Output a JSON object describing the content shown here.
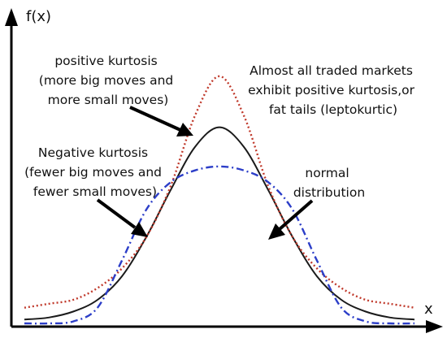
{
  "chart_data": {
    "type": "line",
    "title": "",
    "xlabel": "x",
    "ylabel": "f(x)",
    "grid": false,
    "legend": "none",
    "xlim": [
      -4,
      4
    ],
    "ylim": [
      0,
      0.7
    ],
    "series": [
      {
        "key": "normal",
        "style": "solid",
        "color": "#1a1a1a",
        "x": [
          -4,
          -3.5,
          -3,
          -2.5,
          -2,
          -1.5,
          -1,
          -0.5,
          0,
          0.5,
          1,
          1.5,
          2,
          2.5,
          3,
          3.5,
          4
        ],
        "y": [
          0.01,
          0.015,
          0.03,
          0.06,
          0.12,
          0.22,
          0.34,
          0.45,
          0.5,
          0.45,
          0.34,
          0.22,
          0.12,
          0.06,
          0.03,
          0.015,
          0.01
        ]
      },
      {
        "key": "leptokurtic",
        "style": "dotted",
        "color": "#c0392b",
        "x": [
          -4,
          -3.5,
          -3,
          -2.5,
          -2,
          -1.5,
          -1,
          -0.5,
          0,
          0.5,
          1,
          1.5,
          2,
          2.5,
          3,
          3.5,
          4
        ],
        "y": [
          0.04,
          0.05,
          0.06,
          0.09,
          0.14,
          0.22,
          0.35,
          0.53,
          0.63,
          0.53,
          0.35,
          0.22,
          0.14,
          0.09,
          0.06,
          0.05,
          0.04
        ]
      },
      {
        "key": "platykurtic",
        "style": "dashed",
        "color": "#2c3ec8",
        "x": [
          -4,
          -3.5,
          -3,
          -2.5,
          -2,
          -1.5,
          -1,
          -0.5,
          0,
          0.5,
          1,
          1.5,
          2,
          2.5,
          3,
          3.5,
          4
        ],
        "y": [
          0,
          0,
          0.005,
          0.04,
          0.16,
          0.29,
          0.36,
          0.39,
          0.4,
          0.39,
          0.36,
          0.29,
          0.16,
          0.04,
          0.005,
          0,
          0
        ]
      }
    ],
    "annotations": [
      {
        "key": "positive",
        "lines": [
          "positive kurtosis",
          "(more big moves and",
          "more small moves)"
        ]
      },
      {
        "key": "market",
        "lines": [
          "Almost all traded markets",
          "exhibit positive kurtosis,or",
          "fat tails (leptokurtic)"
        ]
      },
      {
        "key": "negative",
        "lines": [
          "Negative kurtosis",
          "(fewer big moves and",
          "fewer small moves)"
        ]
      },
      {
        "key": "normal",
        "lines": [
          "normal",
          "distribution"
        ]
      }
    ]
  }
}
